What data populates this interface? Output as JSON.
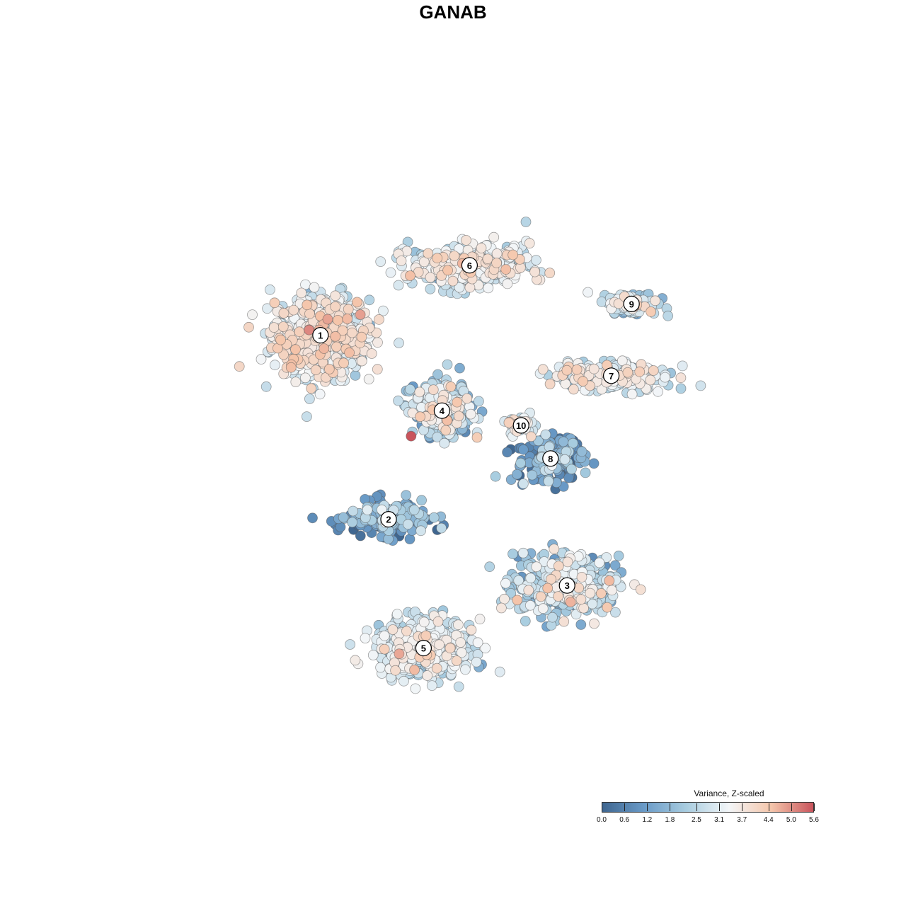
{
  "chart_data": {
    "type": "scatter",
    "title": "GANAB",
    "legend": {
      "title": "Variance, Z-scaled",
      "range": [
        0.0,
        5.6
      ],
      "ticks": [
        "0.0",
        "0.6",
        "1.2",
        "1.8",
        "2.5",
        "3.1",
        "3.7",
        "4.4",
        "5.0",
        "5.6"
      ],
      "colors": [
        "#3f6690",
        "#6a9bc8",
        "#a9cde0",
        "#f3f6f8",
        "#f5c6ab",
        "#c9545c"
      ],
      "placement": "bottom-right"
    },
    "clusters": [
      {
        "label": "1",
        "x": -7.2,
        "y": 6.4,
        "n": 700,
        "sx": 2.6,
        "sy": 2.2,
        "value_mean": 3.2,
        "value_sd": 0.6
      },
      {
        "label": "2",
        "x": -3.5,
        "y": -3.6,
        "n": 200,
        "sx": 2.2,
        "sy": 0.9,
        "value_mean": 1.2,
        "value_sd": 0.8
      },
      {
        "label": "3",
        "x": 6.2,
        "y": -7.2,
        "n": 420,
        "sx": 2.8,
        "sy": 1.6,
        "value_mean": 2.4,
        "value_sd": 0.8
      },
      {
        "label": "4",
        "x": -0.6,
        "y": 2.3,
        "n": 300,
        "sx": 1.6,
        "sy": 1.4,
        "value_mean": 2.4,
        "value_sd": 0.9
      },
      {
        "label": "5",
        "x": -1.6,
        "y": -10.6,
        "n": 480,
        "sx": 2.6,
        "sy": 1.5,
        "value_mean": 2.8,
        "value_sd": 0.6
      },
      {
        "label": "6",
        "x": 0.9,
        "y": 10.2,
        "n": 420,
        "sx": 3.2,
        "sy": 1.1,
        "value_mean": 3.0,
        "value_sd": 0.6
      },
      {
        "label": "7",
        "x": 8.6,
        "y": 4.2,
        "n": 220,
        "sx": 3.2,
        "sy": 0.8,
        "value_mean": 3.0,
        "value_sd": 0.6
      },
      {
        "label": "8",
        "x": 5.3,
        "y": -0.3,
        "n": 190,
        "sx": 1.8,
        "sy": 1.3,
        "value_mean": 1.1,
        "value_sd": 0.8
      },
      {
        "label": "9",
        "x": 9.7,
        "y": 8.1,
        "n": 110,
        "sx": 1.4,
        "sy": 0.6,
        "value_mean": 2.6,
        "value_sd": 0.8
      },
      {
        "label": "10",
        "x": 3.7,
        "y": 1.5,
        "n": 50,
        "sx": 0.6,
        "sy": 0.5,
        "value_mean": 3.1,
        "value_sd": 0.6
      }
    ]
  }
}
